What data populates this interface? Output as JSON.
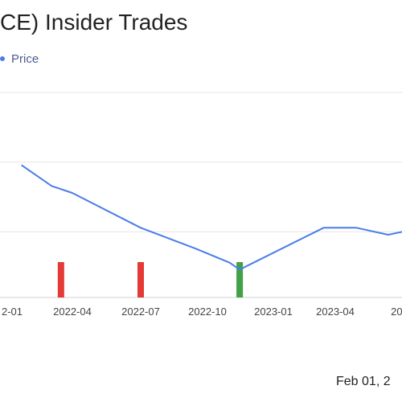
{
  "header": {
    "title": "CE) Insider Trades"
  },
  "legend": {
    "label": "Price",
    "color": "#4a7de8"
  },
  "footer": {
    "date": "Feb 01, 2"
  },
  "chart_data": {
    "type": "line",
    "title": "CE) Insider Trades",
    "xlabel": "",
    "ylabel": "",
    "grid": true,
    "legend_position": "top-left",
    "x_ticks": [
      "2-01",
      "2022-04",
      "2022-07",
      "2022-10",
      "2023-01",
      "2023-04",
      "202"
    ],
    "series": [
      {
        "name": "Price",
        "color": "#4a7de8",
        "points": [
          {
            "x": "2022-01-15",
            "y": 19
          },
          {
            "x": "2022-03-01",
            "y": 16
          },
          {
            "x": "2022-04-01",
            "y": 15
          },
          {
            "x": "2022-07-01",
            "y": 10
          },
          {
            "x": "2022-09-15",
            "y": 7
          },
          {
            "x": "2022-11-01",
            "y": 5
          },
          {
            "x": "2022-11-15",
            "y": 4
          },
          {
            "x": "2023-03-15",
            "y": 10
          },
          {
            "x": "2023-05-01",
            "y": 10
          },
          {
            "x": "2023-06-15",
            "y": 9
          },
          {
            "x": "2023-08-01",
            "y": 10
          }
        ]
      }
    ],
    "trades": [
      {
        "date": "2022-03-15",
        "type": "sell",
        "color": "#e53935"
      },
      {
        "date": "2022-07-01",
        "type": "sell",
        "color": "#e53935"
      },
      {
        "date": "2022-11-15",
        "type": "buy",
        "color": "#43a047"
      }
    ]
  }
}
